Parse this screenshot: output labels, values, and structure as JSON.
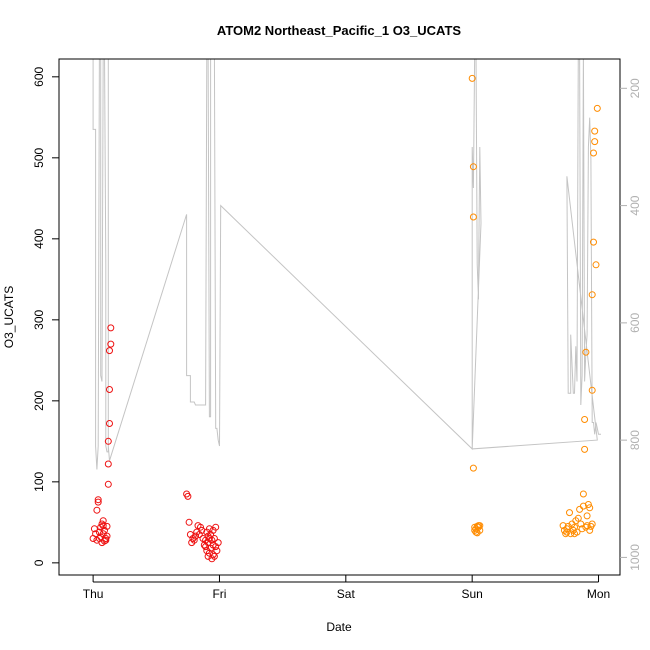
{
  "chart_data": {
    "type": "scatter",
    "title": "ATOM2 Northeast_Pacific_1 O3_UCATS",
    "xlabel": "Date",
    "ylabel": "O3_UCATS",
    "x_ticks": [
      "Thu",
      "Fri",
      "Sat",
      "Sun",
      "Mon"
    ],
    "xlim": [
      -0.27,
      4.17
    ],
    "ylim": [
      -15,
      622
    ],
    "y_ticks": [
      0,
      100,
      200,
      300,
      400,
      500,
      600
    ],
    "y2_ticks": [
      200,
      400,
      600,
      800,
      1000
    ],
    "y2lim": [
      1030,
      150
    ],
    "colors": {
      "red": "#ee1111",
      "orange": "#ff8c00",
      "gray": "#c4c4c4"
    },
    "series": [
      {
        "points": [
          [
            0.0,
            30
          ],
          [
            0.01,
            42
          ],
          [
            0.02,
            36
          ],
          [
            0.03,
            28
          ],
          [
            0.03,
            65
          ],
          [
            0.04,
            75
          ],
          [
            0.04,
            78
          ],
          [
            0.05,
            38
          ],
          [
            0.06,
            44
          ],
          [
            0.06,
            32
          ],
          [
            0.07,
            48
          ],
          [
            0.07,
            25
          ],
          [
            0.08,
            36
          ],
          [
            0.08,
            52
          ],
          [
            0.09,
            40
          ],
          [
            0.1,
            30
          ],
          [
            0.1,
            28
          ],
          [
            0.11,
            45
          ],
          [
            0.11,
            33
          ],
          [
            0.12,
            97
          ],
          [
            0.12,
            122
          ],
          [
            0.12,
            150
          ],
          [
            0.13,
            172
          ],
          [
            0.13,
            214
          ],
          [
            0.13,
            262
          ],
          [
            0.14,
            270
          ],
          [
            0.14,
            290
          ],
          [
            0.08,
            46
          ],
          [
            0.05,
            30
          ],
          [
            0.09,
            27
          ],
          [
            0.74,
            85
          ],
          [
            0.75,
            82
          ],
          [
            0.76,
            50
          ],
          [
            0.77,
            35
          ],
          [
            0.78,
            25
          ],
          [
            0.79,
            30
          ],
          [
            0.8,
            28
          ],
          [
            0.81,
            33
          ],
          [
            0.82,
            38
          ],
          [
            0.83,
            46
          ],
          [
            0.84,
            35
          ],
          [
            0.85,
            44
          ],
          [
            0.86,
            40
          ],
          [
            0.87,
            30
          ],
          [
            0.88,
            22
          ],
          [
            0.89,
            28
          ],
          [
            0.9,
            15
          ],
          [
            0.9,
            38
          ],
          [
            0.91,
            8
          ],
          [
            0.91,
            25
          ],
          [
            0.92,
            30
          ],
          [
            0.92,
            12
          ],
          [
            0.93,
            18
          ],
          [
            0.93,
            35
          ],
          [
            0.94,
            28
          ],
          [
            0.95,
            10
          ],
          [
            0.95,
            22
          ],
          [
            0.96,
            30
          ],
          [
            0.97,
            44
          ],
          [
            0.97,
            20
          ],
          [
            0.98,
            15
          ],
          [
            0.99,
            25
          ],
          [
            0.92,
            42
          ],
          [
            0.94,
            5
          ],
          [
            0.96,
            8
          ],
          [
            0.89,
            20
          ],
          [
            0.91,
            33
          ],
          [
            0.95,
            40
          ]
        ]
      },
      {
        "points": [
          [
            3.0,
            598
          ],
          [
            3.01,
            489
          ],
          [
            3.01,
            427
          ],
          [
            3.01,
            117
          ],
          [
            3.02,
            40
          ],
          [
            3.03,
            38
          ],
          [
            3.03,
            42
          ],
          [
            3.04,
            45
          ],
          [
            3.04,
            37
          ],
          [
            3.05,
            44
          ],
          [
            3.05,
            46
          ],
          [
            3.06,
            40
          ],
          [
            3.02,
            44
          ],
          [
            3.06,
            46
          ],
          [
            3.72,
            46
          ],
          [
            3.73,
            40
          ],
          [
            3.74,
            36
          ],
          [
            3.75,
            38
          ],
          [
            3.76,
            45
          ],
          [
            3.77,
            62
          ],
          [
            3.78,
            36
          ],
          [
            3.79,
            48
          ],
          [
            3.8,
            40
          ],
          [
            3.81,
            44
          ],
          [
            3.82,
            52
          ],
          [
            3.83,
            38
          ],
          [
            3.84,
            55
          ],
          [
            3.85,
            66
          ],
          [
            3.86,
            48
          ],
          [
            3.87,
            42
          ],
          [
            3.88,
            70
          ],
          [
            3.88,
            85
          ],
          [
            3.89,
            140
          ],
          [
            3.89,
            177
          ],
          [
            3.9,
            260
          ],
          [
            3.9,
            44
          ],
          [
            3.91,
            46
          ],
          [
            3.92,
            72
          ],
          [
            3.93,
            68
          ],
          [
            3.93,
            40
          ],
          [
            3.94,
            45
          ],
          [
            3.95,
            213
          ],
          [
            3.95,
            331
          ],
          [
            3.96,
            396
          ],
          [
            3.96,
            506
          ],
          [
            3.97,
            520
          ],
          [
            3.97,
            533
          ],
          [
            3.98,
            368
          ],
          [
            3.99,
            561
          ],
          [
            3.95,
            48
          ],
          [
            3.75,
            42
          ],
          [
            3.81,
            36
          ],
          [
            3.91,
            58
          ]
        ]
      }
    ],
    "line_series": [
      {
        "points": [
          [
            0.0,
            135
          ],
          [
            0.0,
            270
          ],
          [
            0.02,
            270
          ],
          [
            0.02,
            810
          ],
          [
            0.03,
            850
          ],
          [
            0.04,
            810
          ],
          [
            0.05,
            135
          ],
          [
            0.06,
            135
          ],
          [
            0.06,
            690
          ],
          [
            0.07,
            700
          ],
          [
            0.08,
            135
          ],
          [
            0.09,
            135
          ],
          [
            0.1,
            500
          ],
          [
            0.1,
            810
          ],
          [
            0.11,
            820
          ],
          [
            0.12,
            820
          ],
          [
            0.12,
            135
          ],
          [
            0.12,
            810
          ],
          [
            0.13,
            835
          ],
          [
            0.74,
            415
          ],
          [
            0.74,
            690
          ],
          [
            0.77,
            690
          ],
          [
            0.77,
            735
          ],
          [
            0.78,
            735
          ],
          [
            0.8,
            735
          ],
          [
            0.81,
            740
          ],
          [
            0.85,
            740
          ],
          [
            0.89,
            740
          ],
          [
            0.9,
            135
          ],
          [
            0.91,
            135
          ],
          [
            0.92,
            760
          ],
          [
            0.93,
            760
          ],
          [
            0.93,
            135
          ],
          [
            0.96,
            135
          ],
          [
            0.97,
            780
          ],
          [
            0.98,
            780
          ],
          [
            0.99,
            800
          ],
          [
            1.0,
            810
          ],
          [
            1.01,
            400
          ],
          [
            3.0,
            815
          ],
          [
            3.0,
            300
          ],
          [
            3.01,
            370
          ],
          [
            3.02,
            135
          ],
          [
            3.03,
            135
          ],
          [
            3.04,
            500
          ],
          [
            3.05,
            560
          ],
          [
            3.05,
            535
          ],
          [
            3.06,
            300
          ],
          [
            3.07,
            430
          ],
          [
            3.0,
            815
          ],
          [
            3.99,
            800
          ],
          [
            3.75,
            350
          ],
          [
            3.76,
            720
          ],
          [
            3.78,
            720
          ],
          [
            3.78,
            620
          ],
          [
            3.8,
            720
          ],
          [
            3.81,
            720
          ],
          [
            3.82,
            640
          ],
          [
            3.83,
            700
          ],
          [
            3.84,
            135
          ],
          [
            3.85,
            135
          ],
          [
            3.86,
            740
          ],
          [
            3.87,
            690
          ],
          [
            3.88,
            135
          ],
          [
            3.89,
            700
          ],
          [
            3.9,
            650
          ],
          [
            3.91,
            620
          ],
          [
            3.92,
            300
          ],
          [
            3.93,
            250
          ],
          [
            3.94,
            320
          ],
          [
            3.95,
            770
          ],
          [
            3.96,
            770
          ],
          [
            3.97,
            790
          ],
          [
            3.98,
            770
          ],
          [
            3.99,
            780
          ],
          [
            4.0,
            790
          ],
          [
            4.02,
            790
          ]
        ]
      }
    ]
  }
}
